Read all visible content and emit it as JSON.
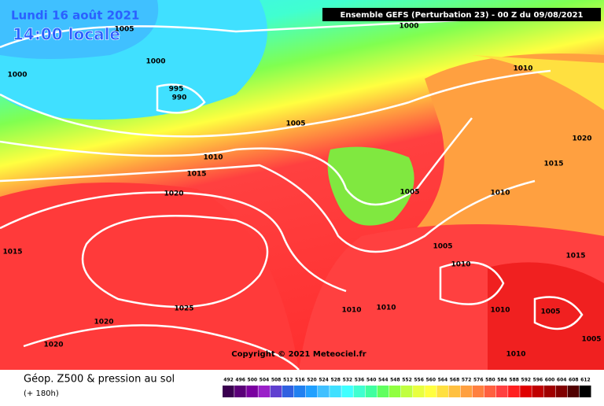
{
  "header": {
    "date": "Lundi 16 août 2021",
    "time": "14:00 locale",
    "model": "Ensemble GEFS  (Perturbation 23)  -  00 Z du 09/08/2021"
  },
  "isobar_labels": [
    "1005",
    "1000",
    "1000",
    "1000",
    "995",
    "990",
    "1010",
    "1005",
    "1020",
    "1010",
    "1015",
    "1015",
    "1020",
    "1005",
    "1010",
    "1015",
    "1005",
    "1010",
    "1015",
    "1025",
    "1010",
    "1010",
    "1010",
    "1005",
    "1020",
    "1005",
    "1020",
    "1010"
  ],
  "copyright": "Copyright © 2021 Meteociel.fr",
  "legend": {
    "title": "Géop. Z500 & pression au sol",
    "lead": "(+ 180h)",
    "scale": [
      492,
      496,
      500,
      504,
      508,
      512,
      516,
      520,
      524,
      528,
      532,
      536,
      540,
      544,
      548,
      552,
      556,
      560,
      564,
      568,
      572,
      576,
      580,
      584,
      588,
      592,
      596,
      600,
      604,
      608,
      612
    ],
    "colors": [
      "#3a0050",
      "#5a0078",
      "#7a00a0",
      "#9a20c8",
      "#6040d0",
      "#3060e0",
      "#2080f0",
      "#20a0ff",
      "#40c0ff",
      "#40e0ff",
      "#40ffff",
      "#40ffd0",
      "#40ffa0",
      "#60ff60",
      "#90ff40",
      "#c0ff40",
      "#e8ff40",
      "#ffff40",
      "#ffe040",
      "#ffc040",
      "#ffa040",
      "#ff8040",
      "#ff6040",
      "#ff4040",
      "#ff2020",
      "#e00000",
      "#c00000",
      "#a00000",
      "#800000",
      "#500000",
      "#000000"
    ]
  }
}
